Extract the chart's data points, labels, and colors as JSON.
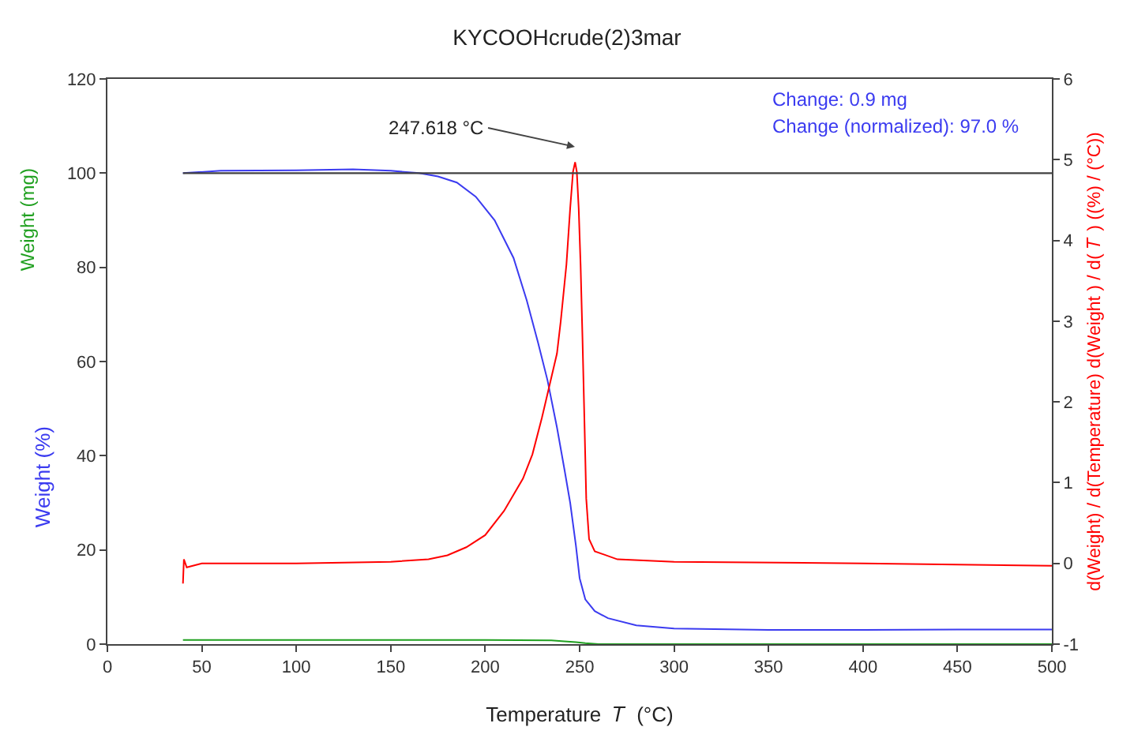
{
  "chart_data": {
    "type": "line",
    "title": "KYCOOHcrude(2)3mar",
    "xlabel": "Temperature  𝑇  (°C)",
    "ylabel": "Weight (%)",
    "y2label": "d(Weight) / d(Temperature) d(Weight ) / d( 𝑇 ) ((%) / (°C))",
    "xlim": [
      0,
      500
    ],
    "xticks": [
      0,
      50,
      100,
      150,
      200,
      250,
      300,
      350,
      400,
      450,
      500
    ],
    "ylim": [
      0,
      120
    ],
    "yticks": [
      0,
      20,
      40,
      60,
      80,
      100,
      120
    ],
    "y2lim": [
      -1,
      6
    ],
    "y2ticks": [
      -1,
      0,
      1,
      2,
      3,
      4,
      5,
      6
    ],
    "grid": false,
    "marker": "none",
    "line_style": "solid",
    "series": [
      {
        "color": "#3b3bf0",
        "x": [
          40,
          60,
          100,
          130,
          150,
          165,
          175,
          185,
          195,
          205,
          215,
          222,
          228,
          233,
          238,
          242,
          245,
          248,
          250,
          253,
          258,
          265,
          280,
          300,
          350,
          400,
          450,
          500
        ],
        "values": [
          100,
          100.5,
          100.6,
          100.8,
          100.5,
          100,
          99.3,
          98,
          95,
          90,
          82,
          73,
          64,
          56,
          46,
          37,
          30,
          21,
          14,
          9.5,
          7,
          5.5,
          4,
          3.3,
          3,
          3,
          3.1,
          3.1
        ]
      },
      {
        "color": "#20a020",
        "x": [
          40,
          100,
          150,
          200,
          235,
          242,
          248,
          253,
          260,
          300,
          400,
          500
        ],
        "values": [
          0.9,
          0.9,
          0.9,
          0.9,
          0.8,
          0.6,
          0.4,
          0.2,
          0,
          0,
          0,
          0
        ]
      },
      {
        "color": "#ff0000",
        "axis": "y2",
        "x": [
          40,
          40.5,
          42,
          50,
          100,
          150,
          170,
          180,
          190,
          200,
          210,
          215,
          220,
          225,
          230,
          235,
          238,
          240,
          243,
          245,
          246.5,
          247.6,
          248.5,
          249.5,
          250.5,
          251.5,
          252.5,
          253.5,
          255,
          258,
          270,
          300,
          400,
          500
        ],
        "values": [
          -0.25,
          0.05,
          -0.05,
          0.0,
          0.0,
          0.02,
          0.05,
          0.1,
          0.2,
          0.35,
          0.65,
          0.85,
          1.05,
          1.35,
          1.8,
          2.3,
          2.6,
          3.0,
          3.7,
          4.4,
          4.85,
          4.97,
          4.85,
          4.4,
          3.7,
          2.8,
          1.8,
          0.8,
          0.3,
          0.15,
          0.05,
          0.02,
          0.0,
          -0.03
        ]
      }
    ],
    "ref_lines": [
      {
        "axis": "y",
        "value": 100,
        "color": "#404040"
      }
    ],
    "annotations": [
      "Change: 0.9 mg",
      "Change (normalized): 97.0 %",
      "Weight (mg)",
      "247.618 °C"
    ]
  }
}
